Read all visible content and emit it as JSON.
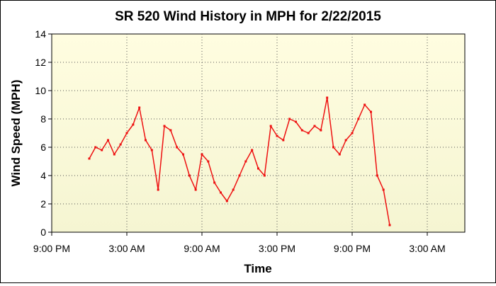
{
  "chart_data": {
    "type": "line",
    "title": "SR 520 Wind History in MPH for 2/22/2015",
    "xlabel": "Time",
    "ylabel": "Wind Speed (MPH)",
    "ylim": [
      0,
      14
    ],
    "yticks": [
      0,
      2,
      4,
      6,
      8,
      10,
      12,
      14
    ],
    "xlim": [
      -3,
      30
    ],
    "xticks": [
      {
        "value": -3,
        "label": "9:00 PM"
      },
      {
        "value": 3,
        "label": "3:00 AM"
      },
      {
        "value": 9,
        "label": "9:00 AM"
      },
      {
        "value": 15,
        "label": "3:00 PM"
      },
      {
        "value": 21,
        "label": "9:00 PM"
      },
      {
        "value": 27,
        "label": "3:00 AM"
      }
    ],
    "x_unit": "hours since midnight 2/22/2015",
    "grid": true,
    "colors": {
      "series": "#ee1111",
      "plot_bg_top": "#fffde0",
      "plot_bg_bottom": "#f5f5d2",
      "grid": "#555555"
    },
    "series": [
      {
        "name": "Wind Speed",
        "x": [
          0,
          0.5,
          1,
          1.5,
          2,
          2.5,
          3,
          3.5,
          4,
          4.5,
          5,
          5.5,
          6,
          6.5,
          7,
          7.5,
          8,
          8.5,
          9,
          9.5,
          10,
          10.5,
          11,
          11.5,
          12,
          12.5,
          13,
          13.5,
          14,
          14.5,
          15,
          15.5,
          16,
          16.5,
          17,
          17.5,
          18,
          18.5,
          19,
          19.5,
          20,
          20.5,
          21,
          21.5,
          22,
          22.5,
          23,
          23.5,
          24
        ],
        "y": [
          5.2,
          6.0,
          5.8,
          6.5,
          5.5,
          6.2,
          7.0,
          7.6,
          8.8,
          6.5,
          5.8,
          3.0,
          7.5,
          7.2,
          6.0,
          5.5,
          4.0,
          3.0,
          5.5,
          5.0,
          3.5,
          2.8,
          2.2,
          3.0,
          4.0,
          5.0,
          5.8,
          4.5,
          4.0,
          7.5,
          6.8,
          6.5,
          8.0,
          7.8,
          7.2,
          7.0,
          7.5,
          7.2,
          9.5,
          6.0,
          5.5,
          6.5,
          7.0,
          8.0,
          9.0,
          8.5,
          4.0,
          3.0,
          0.5
        ]
      }
    ]
  }
}
